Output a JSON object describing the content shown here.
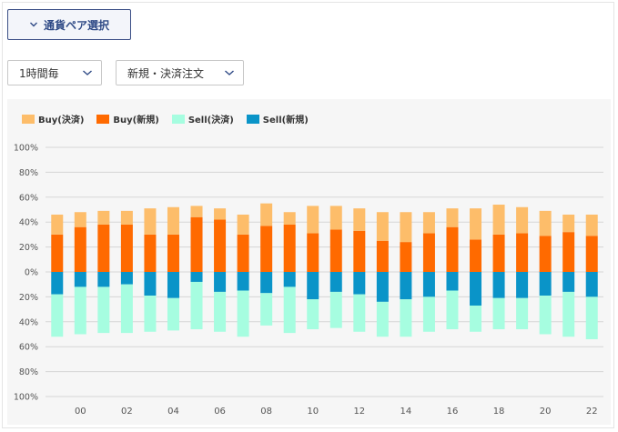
{
  "controls": {
    "pair_button_label": "通貨ペア選択",
    "interval_select": "1時間毎",
    "order_select": "新規・決済注文"
  },
  "colors": {
    "buy_close": "#fdbd6a",
    "buy_new": "#ff6a00",
    "sell_close": "#a6fde0",
    "sell_new": "#0a94c8",
    "accent": "#2f4a86"
  },
  "chart_data": {
    "type": "bar",
    "stacked": true,
    "legend_position": "top-left",
    "grid": true,
    "title": "",
    "xlabel": "",
    "ylabel": "",
    "ylim": [
      -100,
      100
    ],
    "y_ticks": [
      "100%",
      "80%",
      "60%",
      "40%",
      "20%",
      "0%",
      "20%",
      "40%",
      "60%",
      "80%",
      "100%"
    ],
    "x_tick_labels": [
      "00",
      "02",
      "04",
      "06",
      "08",
      "10",
      "12",
      "14",
      "16",
      "18",
      "20",
      "22"
    ],
    "categories": [
      "23",
      "00",
      "01",
      "02",
      "03",
      "04",
      "05",
      "06",
      "07",
      "08",
      "09",
      "10",
      "11",
      "12",
      "13",
      "14",
      "15",
      "16",
      "17",
      "18",
      "19",
      "20",
      "21",
      "22"
    ],
    "series": [
      {
        "name": "Buy(決済)",
        "key": "buy_close",
        "values": [
          16,
          12,
          11,
          11,
          21,
          22,
          9,
          9,
          16,
          18,
          10,
          22,
          19,
          18,
          23,
          24,
          17,
          15,
          25,
          24,
          21,
          20,
          14,
          17
        ]
      },
      {
        "name": "Buy(新規)",
        "key": "buy_new",
        "values": [
          30,
          36,
          38,
          38,
          30,
          30,
          44,
          42,
          30,
          37,
          38,
          31,
          34,
          33,
          25,
          24,
          31,
          36,
          26,
          30,
          31,
          29,
          32,
          29
        ]
      },
      {
        "name": "Sell(決済)",
        "key": "sell_close",
        "values": [
          -34,
          -38,
          -37,
          -39,
          -29,
          -26,
          -38,
          -32,
          -37,
          -26,
          -37,
          -24,
          -29,
          -30,
          -28,
          -30,
          -28,
          -31,
          -21,
          -25,
          -25,
          -31,
          -36,
          -34
        ]
      },
      {
        "name": "Sell(新規)",
        "key": "sell_new",
        "values": [
          -18,
          -12,
          -12,
          -10,
          -19,
          -21,
          -8,
          -16,
          -15,
          -17,
          -12,
          -22,
          -16,
          -18,
          -24,
          -22,
          -20,
          -15,
          -27,
          -21,
          -21,
          -19,
          -16,
          -20
        ]
      }
    ]
  }
}
